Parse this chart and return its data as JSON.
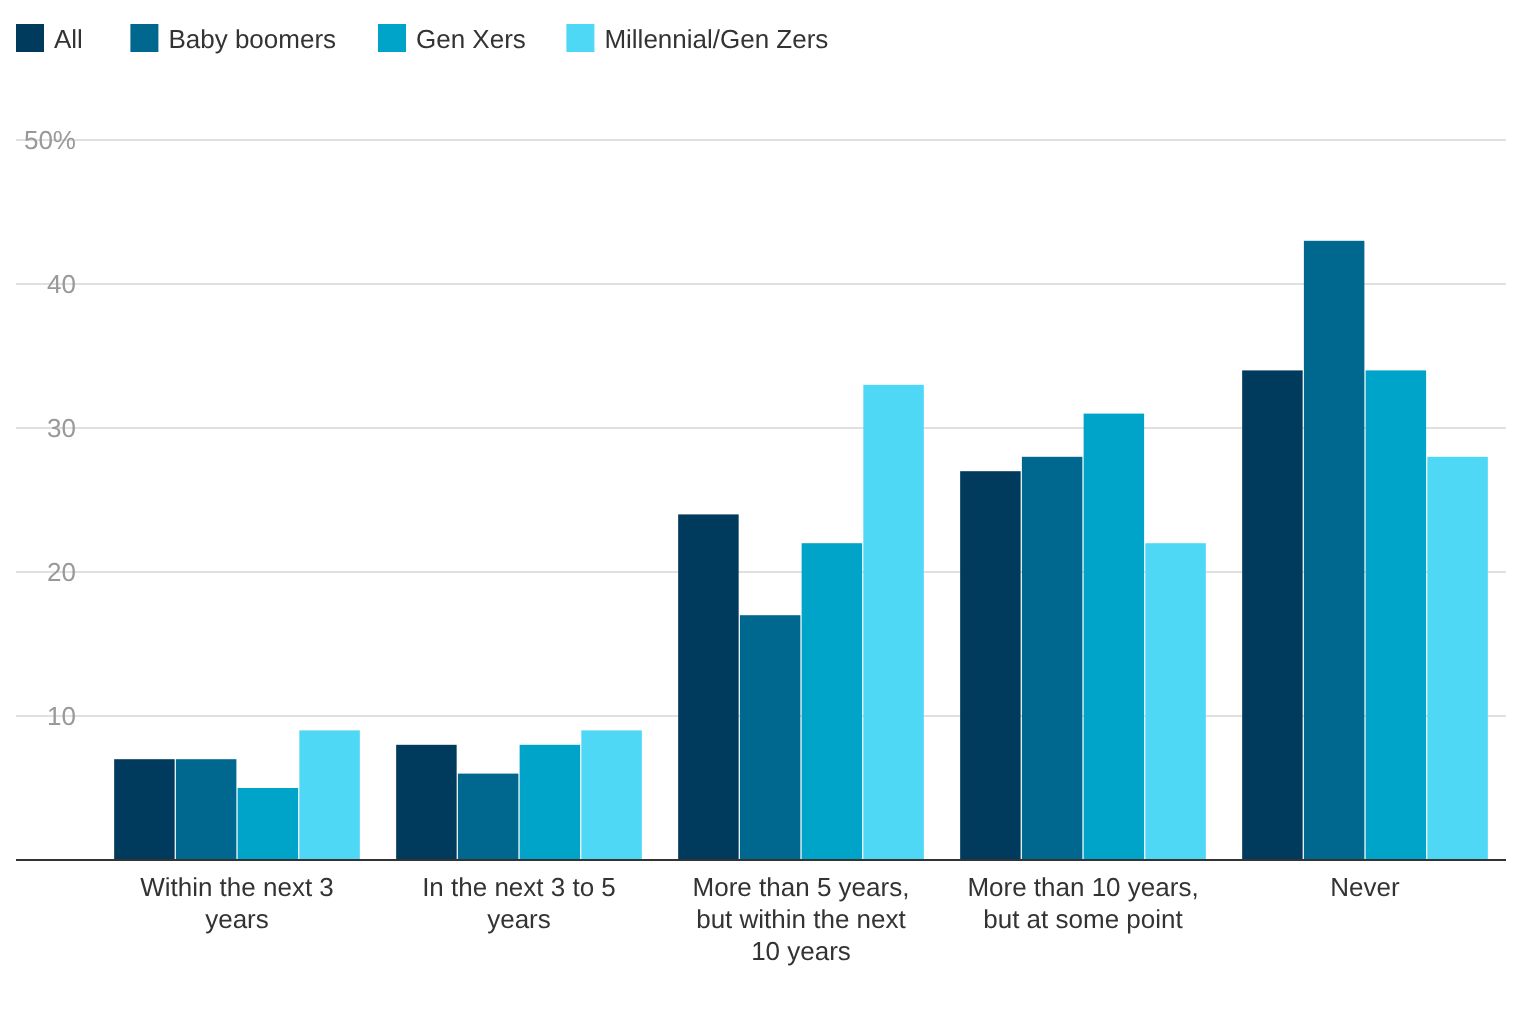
{
  "chart_data": {
    "type": "bar",
    "categories": [
      "Within the next 3 years",
      "In the next 3 to 5 years",
      "More than 5 years, but within the next 10 years",
      "More than 10 years, but at some point",
      "Never"
    ],
    "series": [
      {
        "name": "All",
        "color": "#003a5c",
        "values": [
          7,
          8,
          24,
          27,
          34
        ]
      },
      {
        "name": "Baby boomers",
        "color": "#00688f",
        "values": [
          7,
          6,
          17,
          28,
          43
        ]
      },
      {
        "name": "Gen Xers",
        "color": "#00a4c8",
        "values": [
          5,
          8,
          22,
          31,
          34
        ]
      },
      {
        "name": "Millennial/Gen Zers",
        "color": "#4fd8f5",
        "values": [
          9,
          9,
          33,
          22,
          28
        ]
      }
    ],
    "ylim": [
      0,
      50
    ],
    "yticks": [
      10,
      20,
      30,
      40,
      {
        "value": 50,
        "label": "50%"
      }
    ],
    "grid": "y",
    "legend": "top left"
  }
}
